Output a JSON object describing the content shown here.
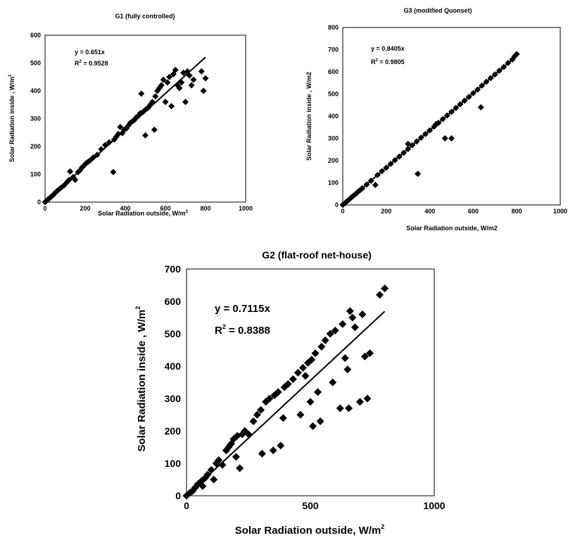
{
  "chart_data": [
    {
      "id": "g1",
      "type": "scatter",
      "title": "G1 (fully controlled)",
      "xlabel": "Solar Radiation outside, W/m",
      "xlabel_sup": "2",
      "ylabel": "Solar Radiation inside , W/m",
      "ylabel_sup": "2",
      "xlim": [
        0,
        1000
      ],
      "ylim": [
        0,
        600
      ],
      "xticks": [
        0,
        200,
        400,
        600,
        800,
        1000
      ],
      "yticks": [
        0,
        100,
        200,
        300,
        400,
        500,
        600
      ],
      "grid": false,
      "equation": "y = 0.651x",
      "r2_label": "R",
      "r2_sup": "2",
      "r2_value": " = 0.9528",
      "trendline": {
        "slope": 0.651,
        "x_range": [
          0,
          800
        ]
      },
      "marker_color": "#000000",
      "points": [
        [
          0,
          0
        ],
        [
          8,
          5
        ],
        [
          15,
          10
        ],
        [
          22,
          14
        ],
        [
          30,
          19
        ],
        [
          40,
          25
        ],
        [
          50,
          33
        ],
        [
          60,
          40
        ],
        [
          70,
          46
        ],
        [
          80,
          52
        ],
        [
          95,
          60
        ],
        [
          110,
          72
        ],
        [
          120,
          80
        ],
        [
          125,
          110
        ],
        [
          140,
          90
        ],
        [
          150,
          80
        ],
        [
          165,
          108
        ],
        [
          175,
          115
        ],
        [
          185,
          125
        ],
        [
          195,
          132
        ],
        [
          205,
          140
        ],
        [
          215,
          145
        ],
        [
          225,
          150
        ],
        [
          240,
          160
        ],
        [
          260,
          170
        ],
        [
          280,
          190
        ],
        [
          300,
          205
        ],
        [
          320,
          215
        ],
        [
          340,
          108
        ],
        [
          345,
          225
        ],
        [
          355,
          235
        ],
        [
          365,
          245
        ],
        [
          375,
          270
        ],
        [
          385,
          248
        ],
        [
          395,
          260
        ],
        [
          405,
          265
        ],
        [
          415,
          275
        ],
        [
          425,
          285
        ],
        [
          435,
          290
        ],
        [
          445,
          295
        ],
        [
          455,
          305
        ],
        [
          465,
          310
        ],
        [
          475,
          320
        ],
        [
          480,
          390
        ],
        [
          490,
          325
        ],
        [
          500,
          240
        ],
        [
          505,
          335
        ],
        [
          515,
          340
        ],
        [
          525,
          350
        ],
        [
          535,
          360
        ],
        [
          545,
          260
        ],
        [
          550,
          380
        ],
        [
          560,
          400
        ],
        [
          570,
          410
        ],
        [
          580,
          420
        ],
        [
          590,
          440
        ],
        [
          600,
          360
        ],
        [
          610,
          430
        ],
        [
          620,
          450
        ],
        [
          630,
          345
        ],
        [
          640,
          460
        ],
        [
          650,
          475
        ],
        [
          660,
          420
        ],
        [
          670,
          410
        ],
        [
          680,
          430
        ],
        [
          690,
          465
        ],
        [
          700,
          360
        ],
        [
          710,
          470
        ],
        [
          720,
          455
        ],
        [
          730,
          420
        ],
        [
          740,
          440
        ],
        [
          780,
          470
        ],
        [
          790,
          400
        ],
        [
          800,
          445
        ]
      ]
    },
    {
      "id": "g3",
      "type": "scatter",
      "title": "G3 (modified Quonset)",
      "xlabel": "Solar Radiation outside, W/m2",
      "ylabel": "Solar Radiation inside , W/m2",
      "xlim": [
        0,
        1000
      ],
      "ylim": [
        0,
        800
      ],
      "xticks": [
        0,
        200,
        400,
        600,
        800,
        1000
      ],
      "yticks": [
        0,
        100,
        200,
        300,
        400,
        500,
        600,
        700,
        800
      ],
      "grid": false,
      "equation": "y = 0.8405x",
      "r2_label": "R",
      "r2_sup": "2",
      "r2_value": " = 0.9805",
      "trendline": {
        "slope": 0.8405,
        "x_range": [
          0,
          800
        ]
      },
      "marker_color": "#000000",
      "points": [
        [
          0,
          0
        ],
        [
          10,
          8
        ],
        [
          20,
          17
        ],
        [
          30,
          25
        ],
        [
          40,
          34
        ],
        [
          50,
          42
        ],
        [
          60,
          50
        ],
        [
          70,
          59
        ],
        [
          80,
          67
        ],
        [
          90,
          75
        ],
        [
          110,
          92
        ],
        [
          130,
          109
        ],
        [
          150,
          90
        ],
        [
          160,
          135
        ],
        [
          180,
          152
        ],
        [
          200,
          168
        ],
        [
          220,
          185
        ],
        [
          240,
          202
        ],
        [
          260,
          218
        ],
        [
          280,
          235
        ],
        [
          300,
          252
        ],
        [
          300,
          275
        ],
        [
          320,
          269
        ],
        [
          340,
          286
        ],
        [
          345,
          140
        ],
        [
          360,
          303
        ],
        [
          380,
          320
        ],
        [
          400,
          336
        ],
        [
          420,
          353
        ],
        [
          430,
          365
        ],
        [
          440,
          370
        ],
        [
          460,
          387
        ],
        [
          470,
          300
        ],
        [
          480,
          403
        ],
        [
          500,
          420
        ],
        [
          500,
          300
        ],
        [
          520,
          437
        ],
        [
          540,
          454
        ],
        [
          560,
          470
        ],
        [
          580,
          487
        ],
        [
          600,
          504
        ],
        [
          620,
          520
        ],
        [
          635,
          440
        ],
        [
          640,
          538
        ],
        [
          660,
          555
        ],
        [
          680,
          572
        ],
        [
          700,
          588
        ],
        [
          720,
          605
        ],
        [
          740,
          622
        ],
        [
          760,
          640
        ],
        [
          780,
          656
        ],
        [
          790,
          670
        ],
        [
          800,
          680
        ]
      ]
    },
    {
      "id": "g2",
      "type": "scatter",
      "title": "G2 (flat-roof net-house)",
      "xlabel": "Solar Radiation outside, W/m",
      "xlabel_sup": "2",
      "ylabel": "Solar Radiation inside , W/m",
      "ylabel_sup": "2",
      "xlim": [
        0,
        1000
      ],
      "ylim": [
        0,
        700
      ],
      "xticks": [
        0,
        500,
        1000
      ],
      "yticks": [
        0,
        100,
        200,
        300,
        400,
        500,
        600,
        700
      ],
      "grid": false,
      "equation": "y = 0.7115x",
      "r2_label": "R",
      "r2_sup": "2",
      "r2_value": " = 0.8388",
      "trendline": {
        "slope": 0.7115,
        "x_range": [
          0,
          800
        ]
      },
      "marker_color": "#000000",
      "points": [
        [
          0,
          0
        ],
        [
          15,
          10
        ],
        [
          25,
          15
        ],
        [
          35,
          25
        ],
        [
          45,
          35
        ],
        [
          55,
          40
        ],
        [
          60,
          45
        ],
        [
          65,
          30
        ],
        [
          75,
          55
        ],
        [
          85,
          65
        ],
        [
          100,
          80
        ],
        [
          110,
          50
        ],
        [
          120,
          100
        ],
        [
          130,
          110
        ],
        [
          145,
          95
        ],
        [
          160,
          140
        ],
        [
          170,
          150
        ],
        [
          180,
          160
        ],
        [
          190,
          175
        ],
        [
          200,
          120
        ],
        [
          205,
          185
        ],
        [
          215,
          85
        ],
        [
          225,
          190
        ],
        [
          235,
          200
        ],
        [
          250,
          190
        ],
        [
          270,
          230
        ],
        [
          285,
          250
        ],
        [
          300,
          265
        ],
        [
          305,
          130
        ],
        [
          320,
          290
        ],
        [
          335,
          300
        ],
        [
          350,
          140
        ],
        [
          355,
          310
        ],
        [
          370,
          320
        ],
        [
          380,
          155
        ],
        [
          390,
          240
        ],
        [
          395,
          335
        ],
        [
          410,
          345
        ],
        [
          430,
          360
        ],
        [
          450,
          380
        ],
        [
          460,
          250
        ],
        [
          470,
          395
        ],
        [
          480,
          370
        ],
        [
          490,
          410
        ],
        [
          500,
          290
        ],
        [
          505,
          420
        ],
        [
          510,
          215
        ],
        [
          520,
          440
        ],
        [
          530,
          320
        ],
        [
          540,
          230
        ],
        [
          545,
          460
        ],
        [
          560,
          480
        ],
        [
          580,
          500
        ],
        [
          590,
          350
        ],
        [
          600,
          510
        ],
        [
          620,
          270
        ],
        [
          630,
          530
        ],
        [
          640,
          425
        ],
        [
          650,
          390
        ],
        [
          655,
          270
        ],
        [
          660,
          570
        ],
        [
          670,
          550
        ],
        [
          680,
          520
        ],
        [
          700,
          290
        ],
        [
          710,
          560
        ],
        [
          720,
          430
        ],
        [
          730,
          300
        ],
        [
          740,
          440
        ],
        [
          780,
          620
        ],
        [
          800,
          640
        ]
      ]
    }
  ]
}
